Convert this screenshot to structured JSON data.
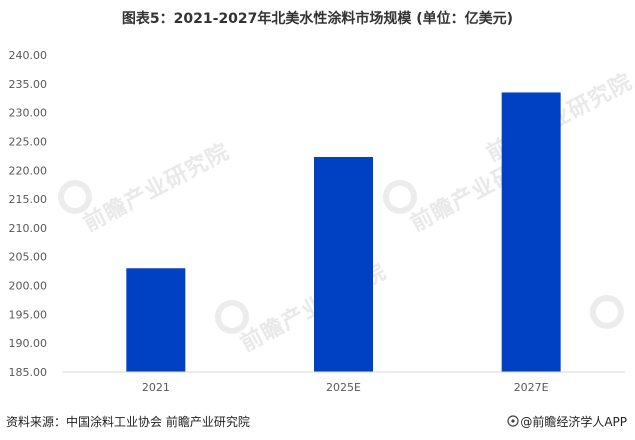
{
  "title": "图表5：2021-2027年北美水性涂料市场规模 (单位：亿美元)",
  "source": "资料来源：中国涂料工业协会 前瞻产业研究院",
  "credit": "@前瞻经济学人APP",
  "watermark": "前瞻产业研究院",
  "colors": {
    "bar": "#0041c4",
    "grid": "#d9d9d9",
    "axis_text": "#595959"
  },
  "chart_data": {
    "type": "bar",
    "categories": [
      "2021",
      "2025E",
      "2027E"
    ],
    "values": [
      203.0,
      222.3,
      233.5
    ],
    "ylim": [
      185,
      240
    ],
    "yticks": [
      "240.00",
      "235.00",
      "230.00",
      "225.00",
      "220.00",
      "215.00",
      "210.00",
      "205.00",
      "200.00",
      "195.00",
      "190.00",
      "185.00"
    ],
    "grid": false
  }
}
